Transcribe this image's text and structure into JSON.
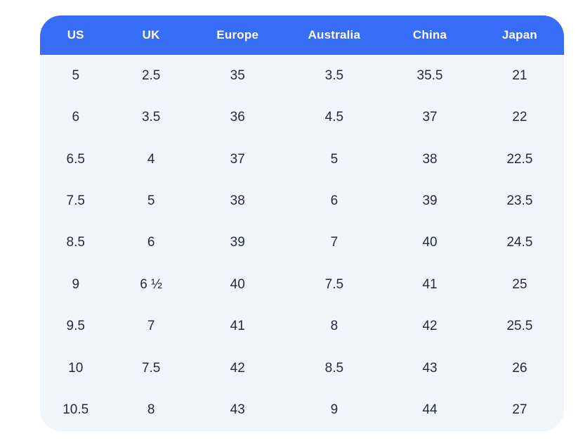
{
  "chart_data": {
    "type": "table",
    "columns": [
      "US",
      "UK",
      "Europe",
      "Australia",
      "China",
      "Japan"
    ],
    "rows": [
      [
        "5",
        "2.5",
        "35",
        "3.5",
        "35.5",
        "21"
      ],
      [
        "6",
        "3.5",
        "36",
        "4.5",
        "37",
        "22"
      ],
      [
        "6.5",
        "4",
        "37",
        "5",
        "38",
        "22.5"
      ],
      [
        "7.5",
        "5",
        "38",
        "6",
        "39",
        "23.5"
      ],
      [
        "8.5",
        "6",
        "39",
        "7",
        "40",
        "24.5"
      ],
      [
        "9",
        "6 ½",
        "40",
        "7.5",
        "41",
        "25"
      ],
      [
        "9.5",
        "7",
        "41",
        "8",
        "42",
        "25.5"
      ],
      [
        "10",
        "7.5",
        "42",
        "8.5",
        "43",
        "26"
      ],
      [
        "10.5",
        "8",
        "43",
        "9",
        "44",
        "27"
      ]
    ],
    "legend_position": "none",
    "grid": false
  },
  "colors": {
    "header_bg": "#376CF6",
    "header_text": "#FFFFFF",
    "body_bg": "#F1F6FD",
    "cell_text": "#1F2A3D",
    "page_bg": "#FFFFFF"
  }
}
